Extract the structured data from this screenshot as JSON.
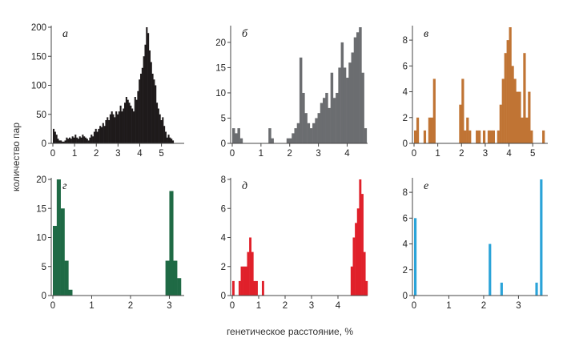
{
  "figure": {
    "ylabel": "количество пар",
    "xlabel": "генетическое расстояние, %"
  },
  "chart_data": [
    {
      "type": "bar",
      "panel": "а",
      "color": "#1e1a1b",
      "bin_width": 0.067,
      "x_start": 0,
      "xlim": [
        0,
        5.9
      ],
      "ylim": [
        0,
        200
      ],
      "xticks": [
        0,
        1,
        2,
        3,
        4,
        5
      ],
      "yticks": [
        0,
        50,
        100,
        150,
        200
      ],
      "values": [
        25,
        20,
        15,
        8,
        5,
        5,
        3,
        3,
        5,
        10,
        8,
        10,
        8,
        12,
        10,
        15,
        10,
        8,
        12,
        10,
        15,
        12,
        10,
        8,
        5,
        10,
        15,
        12,
        20,
        25,
        20,
        25,
        30,
        28,
        35,
        30,
        40,
        45,
        40,
        50,
        55,
        50,
        45,
        55,
        50,
        55,
        65,
        55,
        60,
        70,
        80,
        75,
        70,
        65,
        60,
        55,
        80,
        75,
        90,
        110,
        120,
        130,
        150,
        170,
        200,
        190,
        160,
        140,
        120,
        110,
        100,
        70,
        60,
        50,
        40,
        45,
        30,
        20,
        10,
        15,
        10,
        8,
        5
      ]
    },
    {
      "type": "bar",
      "panel": "б",
      "color": "#6b6d70",
      "bin_width": 0.09,
      "x_start": 0,
      "xlim": [
        0,
        4.6
      ],
      "ylim": [
        0,
        23
      ],
      "xticks": [
        0,
        1,
        2,
        3,
        4
      ],
      "yticks": [
        0,
        5,
        10,
        15,
        20
      ],
      "values": [
        3,
        2,
        3,
        1,
        0,
        0,
        0,
        0,
        0,
        0,
        0,
        0,
        0,
        0,
        3,
        1,
        0,
        0,
        0,
        0,
        0,
        1,
        1,
        2,
        3,
        4,
        17,
        10,
        6,
        4,
        3,
        4,
        5,
        6,
        8,
        9,
        10,
        7,
        14,
        9,
        10,
        15,
        20,
        15,
        13,
        16,
        18,
        21,
        22,
        23,
        14,
        3
      ]
    },
    {
      "type": "bar",
      "panel": "в",
      "color": "#c07434",
      "bin_width": 0.1,
      "x_start": 0,
      "xlim": [
        0,
        5.5
      ],
      "ylim": [
        0,
        9
      ],
      "xticks": [
        0,
        1,
        2,
        3,
        4,
        5
      ],
      "yticks": [
        0,
        2,
        4,
        6,
        8
      ],
      "values": [
        1,
        2,
        0,
        0,
        1,
        0,
        2,
        2,
        5,
        0,
        0,
        0,
        0,
        0,
        0,
        0,
        0,
        0,
        0,
        3,
        5,
        1,
        2,
        1,
        0,
        0,
        1,
        1,
        0,
        1,
        0,
        1,
        1,
        1,
        0,
        1,
        3,
        5,
        7,
        8,
        9,
        6,
        5,
        4,
        4,
        2,
        7,
        2,
        4,
        1,
        0,
        0,
        0,
        0,
        1
      ]
    },
    {
      "type": "bar",
      "panel": "г",
      "color": "#1f6a45",
      "bin_width": 0.1,
      "x_start": 0,
      "xlim": [
        0,
        3.3
      ],
      "ylim": [
        0,
        20
      ],
      "xticks": [
        0,
        1,
        2,
        3
      ],
      "yticks": [
        0,
        5,
        10,
        15,
        20
      ],
      "values": [
        12,
        20,
        15,
        6,
        1,
        0,
        0,
        0,
        0,
        0,
        0,
        0,
        0,
        0,
        0,
        0,
        0,
        0,
        0,
        0,
        0,
        0,
        0,
        0,
        0,
        0,
        0,
        0,
        0,
        6,
        18,
        6,
        3
      ]
    },
    {
      "type": "bar",
      "panel": "д",
      "color": "#e0202a",
      "bin_width": 0.08,
      "x_start": 0,
      "xlim": [
        0,
        5.0
      ],
      "ylim": [
        0,
        8
      ],
      "xticks": [
        0,
        1,
        2,
        3,
        4
      ],
      "yticks": [
        0,
        2,
        4,
        6,
        8
      ],
      "values": [
        1,
        0,
        0,
        1,
        2,
        2,
        2,
        3,
        4,
        3,
        1,
        1,
        0,
        0,
        1,
        0,
        0,
        0,
        0,
        0,
        0,
        0,
        0,
        0,
        0,
        0,
        0,
        0,
        0,
        0,
        0,
        0,
        0,
        0,
        0,
        0,
        0,
        0,
        0,
        0,
        0,
        0,
        0,
        0,
        0,
        0,
        0,
        0,
        0,
        0,
        0,
        0,
        0,
        0,
        0,
        0,
        2,
        4,
        5,
        6,
        8,
        7,
        3,
        1
      ]
    },
    {
      "type": "bar",
      "panel": "е",
      "color": "#2aa3d8",
      "bin_width": 0.067,
      "x_start": 0,
      "xlim": [
        0,
        3.75
      ],
      "ylim": [
        0,
        9
      ],
      "xticks": [
        0,
        1,
        2,
        3
      ],
      "yticks": [
        0,
        2,
        4,
        6,
        8
      ],
      "values": [
        6,
        0,
        0,
        0,
        0,
        0,
        0,
        0,
        0,
        0,
        0,
        0,
        0,
        0,
        0,
        0,
        0,
        0,
        0,
        0,
        0,
        0,
        0,
        0,
        0,
        0,
        0,
        0,
        0,
        0,
        0,
        0,
        4,
        0,
        0,
        0,
        0,
        1,
        0,
        0,
        0,
        0,
        0,
        0,
        0,
        0,
        0,
        0,
        0,
        0,
        0,
        0,
        1,
        0,
        9
      ]
    }
  ]
}
